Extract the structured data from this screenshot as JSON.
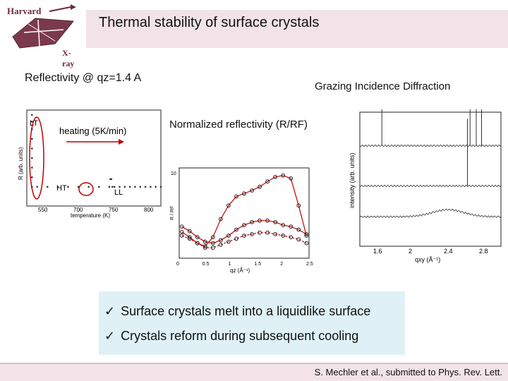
{
  "title": "Thermal stability of surface crystals",
  "logo": {
    "top_text": "Harvard",
    "bottom_text": "X-ray",
    "icon": "harvard-xray-crest-icon"
  },
  "reflectivity_label": "Reflectivity @ qz=1.4 A",
  "gid_label": "Grazing Incidence Diffraction",
  "heating_plot": {
    "label_lt": "LT",
    "label_ht": "HT",
    "label_ll": "LL",
    "arrow_text": "heating (5K/min)",
    "ylabel": "R (arb. units)",
    "xlabel": "temperature (K)",
    "xticks": [
      "550",
      "700",
      "750",
      "800"
    ]
  },
  "refl_plot": {
    "title": "Normalized reflectivity (R/RF)",
    "ylabel": "R / RF",
    "xlabel": "qz (Å⁻¹)",
    "xticks": [
      "0",
      "0.5",
      "1",
      "1.5",
      "2",
      "2.5"
    ],
    "ytick": "10"
  },
  "gid_plot": {
    "ylabel": "intensity (arb. units)",
    "xlabel": "qxy (Å⁻¹)",
    "xticks": [
      "1.6",
      "2",
      "2.4",
      "2.8"
    ]
  },
  "bullets": [
    "Surface crystals melt into a liquidlike surface",
    "Crystals reform during subsequent cooling"
  ],
  "citation": "S. Mechler et al., submitted to Phys. Rev. Lett.",
  "chart_data": [
    {
      "type": "scatter",
      "title": "",
      "xlabel": "temperature (K)",
      "ylabel": "R (arb. units)",
      "xlim": [
        540,
        800
      ],
      "ylim": [
        0,
        1
      ],
      "series": [
        {
          "values_x": [
            550,
            550,
            550,
            550,
            550,
            550,
            550,
            550,
            550,
            560,
            580,
            600,
            620,
            640,
            660,
            680,
            700,
            702,
            704,
            706,
            710,
            720,
            730,
            740,
            750,
            760,
            770,
            780,
            790,
            800
          ],
          "values_y": [
            0.95,
            0.88,
            0.8,
            0.7,
            0.6,
            0.5,
            0.4,
            0.3,
            0.2,
            0.2,
            0.2,
            0.2,
            0.2,
            0.2,
            0.2,
            0.2,
            0.2,
            0.28,
            0.28,
            0.2,
            0.2,
            0.2,
            0.2,
            0.2,
            0.2,
            0.2,
            0.2,
            0.2,
            0.2,
            0.2
          ]
        }
      ]
    },
    {
      "type": "scatter",
      "title": "Normalized reflectivity (R/RF)",
      "xlabel": "qz (Å⁻¹)",
      "ylabel": "R / RF",
      "xlim": [
        0,
        2.5
      ],
      "ylim": [
        0,
        1.2
      ],
      "series": [
        {
          "x": [
            0.05,
            0.2,
            0.35,
            0.5,
            0.65,
            0.8,
            0.95,
            1.1,
            1.25,
            1.4,
            1.55,
            1.7,
            1.85,
            2.0,
            2.15,
            2.3,
            2.45
          ],
          "y": [
            0.35,
            0.28,
            0.2,
            0.16,
            0.28,
            0.52,
            0.7,
            0.82,
            0.86,
            0.9,
            0.95,
            1.02,
            1.08,
            1.1,
            1.06,
            0.7,
            0.3
          ]
        },
        {
          "x": [
            0.05,
            0.2,
            0.35,
            0.5,
            0.65,
            0.8,
            0.95,
            1.1,
            1.25,
            1.4,
            1.55,
            1.7,
            1.85,
            2.0,
            2.15,
            2.3,
            2.45
          ],
          "y": [
            0.42,
            0.36,
            0.28,
            0.22,
            0.2,
            0.24,
            0.3,
            0.38,
            0.44,
            0.48,
            0.5,
            0.5,
            0.48,
            0.44,
            0.42,
            0.38,
            0.32
          ]
        },
        {
          "x": [
            0.05,
            0.2,
            0.35,
            0.5,
            0.65,
            0.8,
            0.95,
            1.1,
            1.25,
            1.4,
            1.55,
            1.7,
            1.85,
            2.0,
            2.15,
            2.3,
            2.45
          ],
          "y": [
            0.3,
            0.26,
            0.2,
            0.14,
            0.14,
            0.18,
            0.22,
            0.26,
            0.3,
            0.32,
            0.34,
            0.34,
            0.32,
            0.3,
            0.28,
            0.25,
            0.2
          ]
        }
      ]
    },
    {
      "type": "line",
      "title": "",
      "xlabel": "qxy (Å⁻¹)",
      "ylabel": "intensity (arb. units)",
      "xlim": [
        1.4,
        3.0
      ],
      "series": [
        {
          "peaks": [
            1.65,
            2.65,
            2.72,
            2.78
          ],
          "baseline": 0.75
        },
        {
          "peaks": [
            2.62
          ],
          "baseline": 0.45
        },
        {
          "peaks": [],
          "baseline": 0.22
        }
      ]
    }
  ]
}
